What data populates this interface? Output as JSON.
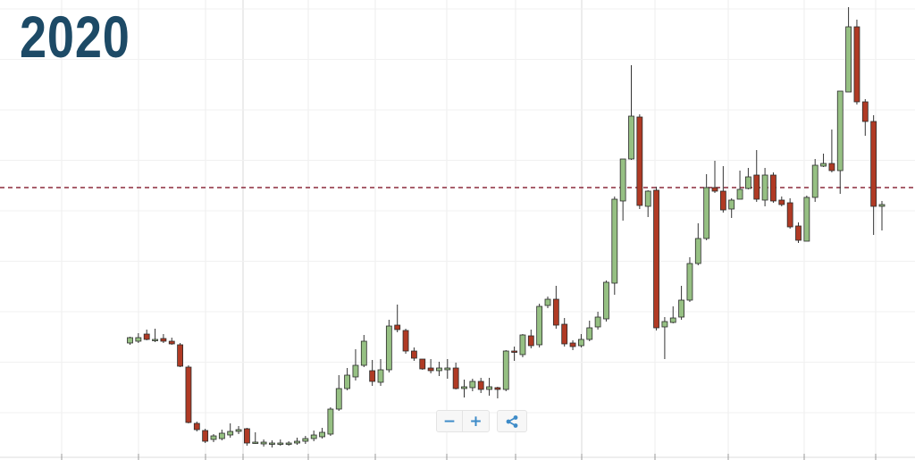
{
  "title": "2020",
  "controls": {
    "zoom_out_label": "−",
    "zoom_in_label": "+",
    "share_icon": "share-icon"
  },
  "colors": {
    "up": "#96c083",
    "down": "#b03a24",
    "reference_line": "#8b2a3c",
    "title": "#1d4a66",
    "grid": "#ececec"
  },
  "chart_data": {
    "type": "candlestick",
    "grid": true,
    "ylim": [
      0,
      515
    ],
    "reference_line": {
      "y": 210,
      "style": "dashed"
    },
    "candles": [
      [
        384,
        378,
        386,
        377
      ],
      [
        382,
        378,
        384,
        373
      ],
      [
        374,
        380,
        381,
        369
      ],
      [
        380,
        380,
        383,
        368
      ],
      [
        379,
        382,
        384,
        374
      ],
      [
        382,
        385,
        386,
        378
      ],
      [
        386,
        410,
        411,
        384
      ],
      [
        411,
        473,
        474,
        409
      ],
      [
        474,
        481,
        483,
        472
      ],
      [
        482,
        494,
        496,
        480
      ],
      [
        492,
        488,
        495,
        486
      ],
      [
        491,
        485,
        493,
        481
      ],
      [
        487,
        483,
        490,
        474
      ],
      [
        483,
        481,
        486,
        477
      ],
      [
        480,
        496,
        499,
        479
      ],
      [
        495,
        495,
        497,
        484
      ],
      [
        497,
        495,
        500,
        492
      ],
      [
        497,
        496,
        501,
        493
      ],
      [
        497,
        496,
        499,
        492
      ],
      [
        497,
        496,
        499,
        494
      ],
      [
        496,
        494,
        498,
        490
      ],
      [
        494,
        491,
        497,
        488
      ],
      [
        491,
        487,
        494,
        482
      ],
      [
        489,
        484,
        491,
        479
      ],
      [
        486,
        458,
        488,
        456
      ],
      [
        458,
        435,
        460,
        420
      ],
      [
        435,
        420,
        437,
        412
      ],
      [
        422,
        409,
        426,
        391
      ],
      [
        409,
        382,
        411,
        375
      ],
      [
        415,
        427,
        432,
        403
      ],
      [
        428,
        414,
        432,
        402
      ],
      [
        414,
        365,
        417,
        358
      ],
      [
        364,
        369,
        372,
        341
      ],
      [
        370,
        393,
        396,
        368
      ],
      [
        393,
        401,
        404,
        389
      ],
      [
        402,
        413,
        414,
        404
      ],
      [
        412,
        415,
        418,
        402
      ],
      [
        415,
        412,
        421,
        405
      ],
      [
        414,
        412,
        424,
        402
      ],
      [
        412,
        435,
        436,
        406
      ],
      [
        435,
        433,
        445,
        425
      ],
      [
        434,
        427,
        438,
        424
      ],
      [
        427,
        436,
        440,
        423
      ],
      [
        436,
        433,
        443,
        423
      ],
      [
        434,
        436,
        446,
        433
      ],
      [
        436,
        393,
        438,
        392
      ],
      [
        393,
        394,
        404,
        388
      ],
      [
        397,
        375,
        400,
        374
      ],
      [
        376,
        387,
        390,
        369
      ],
      [
        386,
        343,
        389,
        340
      ],
      [
        342,
        335,
        345,
        332
      ],
      [
        335,
        364,
        368,
        320
      ],
      [
        363,
        385,
        388,
        356
      ],
      [
        384,
        388,
        392,
        381
      ],
      [
        387,
        380,
        389,
        374
      ],
      [
        380,
        367,
        382,
        359
      ],
      [
        366,
        355,
        369,
        349
      ],
      [
        357,
        316,
        360,
        314
      ],
      [
        317,
        223,
        330,
        220
      ],
      [
        225,
        178,
        247,
        178
      ],
      [
        178,
        130,
        179,
        73
      ],
      [
        131,
        230,
        234,
        128
      ],
      [
        231,
        214,
        243,
        213
      ],
      [
        213,
        367,
        370,
        209
      ],
      [
        366,
        360,
        402,
        355
      ],
      [
        361,
        356,
        362,
        343
      ],
      [
        355,
        336,
        358,
        320
      ],
      [
        336,
        295,
        338,
        288
      ],
      [
        295,
        267,
        297,
        250
      ],
      [
        267,
        210,
        269,
        195
      ],
      [
        210,
        214,
        216,
        180
      ],
      [
        214,
        235,
        238,
        186
      ],
      [
        234,
        224,
        244,
        222
      ],
      [
        223,
        212,
        218,
        191
      ],
      [
        211,
        198,
        212,
        188
      ],
      [
        196,
        223,
        226,
        168
      ],
      [
        224,
        196,
        231,
        188
      ],
      [
        196,
        225,
        227,
        193
      ],
      [
        224,
        229,
        231,
        220
      ],
      [
        227,
        254,
        256,
        222
      ],
      [
        253,
        269,
        272,
        249
      ],
      [
        270,
        221,
        223,
        219
      ],
      [
        221,
        185,
        226,
        178
      ],
      [
        186,
        183,
        187,
        172
      ],
      [
        183,
        191,
        193,
        145
      ],
      [
        191,
        102,
        217,
        102
      ],
      [
        103,
        30,
        102,
        8
      ],
      [
        30,
        114,
        117,
        22
      ],
      [
        114,
        136,
        152,
        111
      ],
      [
        136,
        231,
        263,
        129
      ],
      [
        231,
        229,
        258,
        225
      ]
    ]
  }
}
